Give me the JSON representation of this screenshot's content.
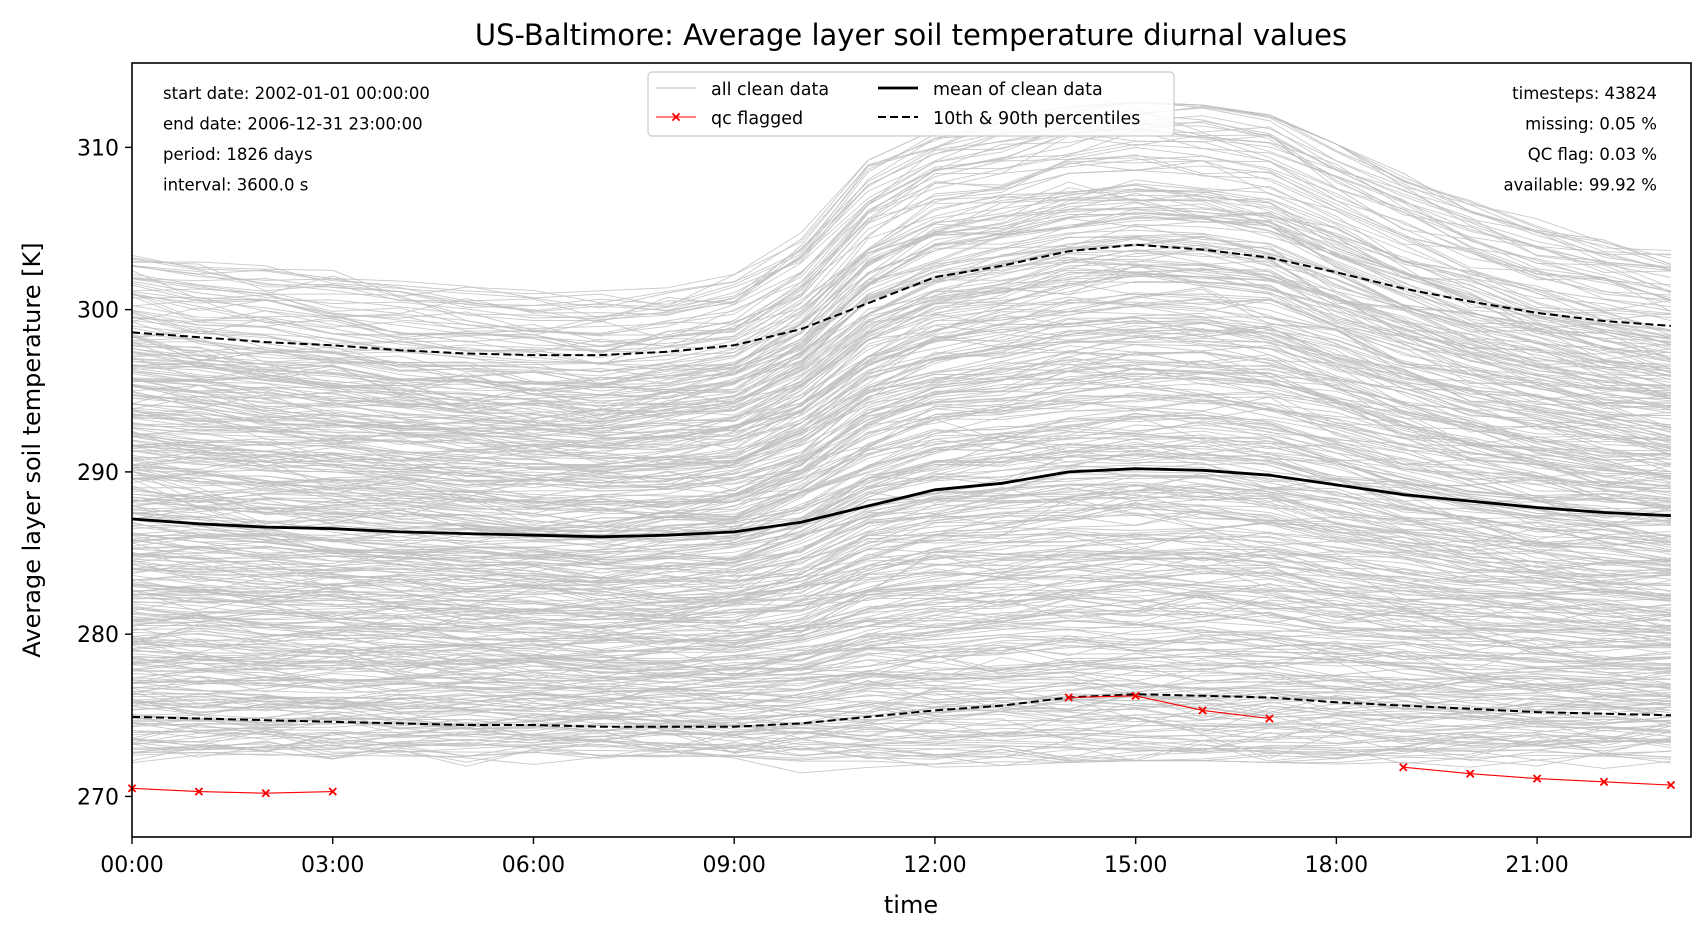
{
  "chart_data": {
    "type": "line",
    "title": "US-Baltimore: Average layer soil temperature diurnal values",
    "xlabel": "time",
    "ylabel": "Average layer soil temperature [K]",
    "xlim": [
      0,
      23.3
    ],
    "ylim": [
      267.5,
      315.2
    ],
    "x_ticks": [
      0,
      3,
      6,
      9,
      12,
      15,
      18,
      21
    ],
    "x_tick_labels": [
      "00:00",
      "03:00",
      "06:00",
      "09:00",
      "12:00",
      "15:00",
      "18:00",
      "21:00"
    ],
    "y_ticks": [
      270,
      280,
      290,
      300,
      310
    ],
    "y_tick_labels": [
      "270",
      "280",
      "290",
      "300",
      "310"
    ],
    "grid": false,
    "legend_position": "top-center",
    "x": [
      0,
      1,
      2,
      3,
      4,
      5,
      6,
      7,
      8,
      9,
      10,
      11,
      12,
      13,
      14,
      15,
      16,
      17,
      18,
      19,
      20,
      21,
      22,
      23
    ],
    "series": [
      {
        "name": "mean of clean data",
        "color": "#000000",
        "style": "solid",
        "values": [
          287.1,
          286.8,
          286.6,
          286.5,
          286.3,
          286.2,
          286.1,
          286.0,
          286.1,
          286.3,
          286.9,
          287.9,
          288.9,
          289.3,
          290.0,
          290.2,
          290.1,
          289.8,
          289.2,
          288.6,
          288.2,
          287.8,
          287.5,
          287.3
        ]
      },
      {
        "name": "10th & 90th percentiles",
        "color": "#000000",
        "style": "dashed",
        "values": [
          298.6,
          298.3,
          298.0,
          297.8,
          297.5,
          297.3,
          297.2,
          297.2,
          297.4,
          297.8,
          298.8,
          300.4,
          302.0,
          302.7,
          303.6,
          304.0,
          303.7,
          303.2,
          302.3,
          301.3,
          300.5,
          299.8,
          299.3,
          299.0
        ]
      },
      {
        "name": "",
        "color": "#000000",
        "style": "dashed",
        "values": [
          274.9,
          274.8,
          274.7,
          274.6,
          274.5,
          274.4,
          274.4,
          274.3,
          274.3,
          274.3,
          274.5,
          274.9,
          275.3,
          275.6,
          276.1,
          276.3,
          276.2,
          276.1,
          275.8,
          275.6,
          275.4,
          275.2,
          275.1,
          275.0
        ]
      }
    ],
    "qc_flagged": {
      "name": "qc flagged",
      "color": "#ff0000",
      "segments": [
        [
          [
            0,
            270.5
          ],
          [
            1,
            270.3
          ],
          [
            2,
            270.2
          ],
          [
            3,
            270.3
          ]
        ],
        [
          [
            14,
            276.1
          ],
          [
            15,
            276.2
          ],
          [
            16,
            275.3
          ],
          [
            17,
            274.8
          ]
        ],
        [
          [
            19,
            271.8
          ],
          [
            20,
            271.4
          ],
          [
            21,
            271.1
          ],
          [
            22,
            270.9
          ],
          [
            23,
            270.7
          ]
        ]
      ]
    },
    "clean_data": {
      "name": "all clean data",
      "color": "#bfbfbf",
      "envelope_low": [
        272.5,
        272.4,
        272.3,
        272.3,
        272.3,
        272.2,
        272.2,
        272.1,
        272.1,
        272.1,
        272.2,
        272.4,
        272.6,
        272.7,
        272.9,
        273.0,
        273.0,
        272.9,
        272.8,
        272.7,
        272.6,
        272.6,
        272.5,
        272.5
      ],
      "envelope_high": [
        303.5,
        303.1,
        302.7,
        302.3,
        301.9,
        301.6,
        301.3,
        301.2,
        301.5,
        302.1,
        304.5,
        308.8,
        310.7,
        311.4,
        312.1,
        312.4,
        312.2,
        311.6,
        309.8,
        308.0,
        306.4,
        305.2,
        304.3,
        303.6
      ]
    },
    "legend": [
      {
        "label": "all clean data",
        "style": "thin-gray"
      },
      {
        "label": "qc flagged",
        "style": "red-x"
      },
      {
        "label": "mean of clean data",
        "style": "solid-black"
      },
      {
        "label": "10th & 90th percentiles",
        "style": "dashed-black"
      }
    ],
    "info_left": [
      "start date: 2002-01-01 00:00:00",
      "end date: 2006-12-31 23:00:00",
      "period: 1826 days",
      "interval: 3600.0 s"
    ],
    "info_right": [
      "timesteps: 43824",
      "missing: 0.05 %",
      "QC flag: 0.03 %",
      "available: 99.92 %"
    ]
  }
}
